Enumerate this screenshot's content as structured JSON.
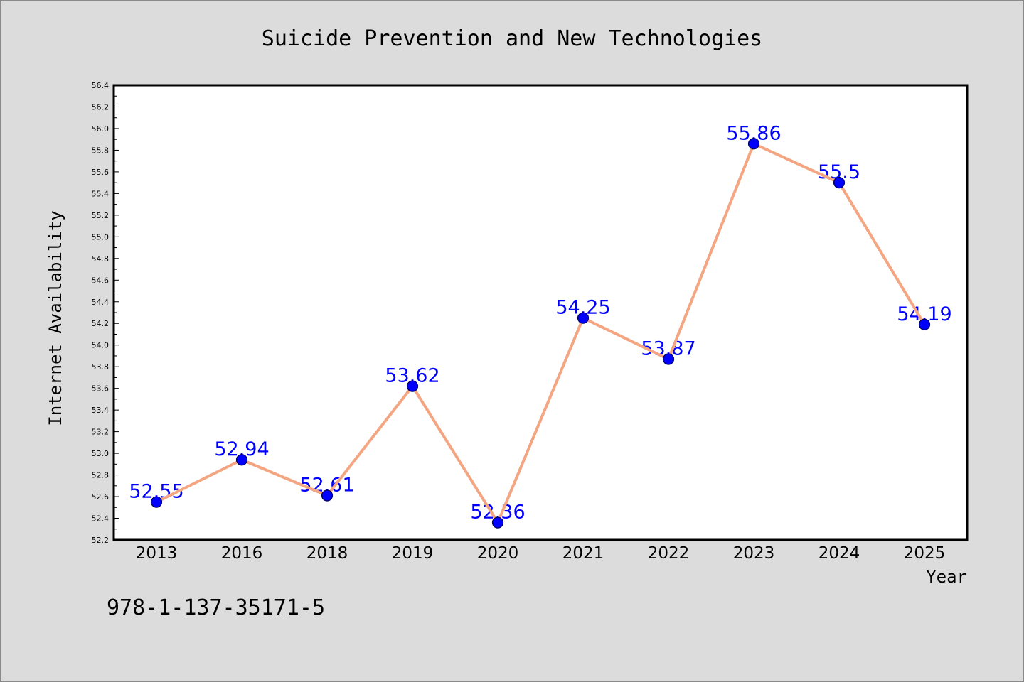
{
  "chart_data": {
    "type": "line",
    "title": "Suicide Prevention and New Technologies",
    "xlabel": "Year",
    "ylabel": "Internet Availability",
    "categories": [
      "2013",
      "2016",
      "2018",
      "2019",
      "2020",
      "2021",
      "2022",
      "2023",
      "2024",
      "2025"
    ],
    "series": [
      {
        "values": [
          52.55,
          52.94,
          52.61,
          53.62,
          52.36,
          54.25,
          53.87,
          55.86,
          55.5,
          54.19
        ],
        "line_color": "#f4a582",
        "marker_color": "#0000ff"
      }
    ],
    "data_labels": true,
    "ylim": [
      52.2,
      56.4
    ],
    "yticks": [
      "52.2",
      "52.4",
      "52.6",
      "52.8",
      "53.0",
      "53.2",
      "53.4",
      "53.6",
      "53.8",
      "54.0",
      "54.2",
      "54.4",
      "54.6",
      "54.8",
      "55.0",
      "55.2",
      "55.4",
      "55.6",
      "55.8",
      "56.0",
      "56.2",
      "56.4"
    ],
    "minor_ticks": true,
    "grid": false,
    "legend": false
  },
  "caption": "978-1-137-35171-5",
  "colors": {
    "background": "#dcdcdc",
    "plot_background": "#ffffff",
    "axis": "#000000",
    "data_label": "#0000ff"
  }
}
